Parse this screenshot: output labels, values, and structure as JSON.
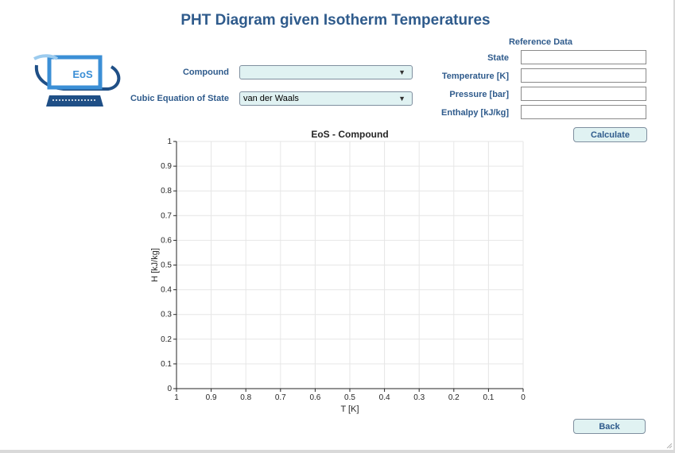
{
  "window": {
    "title": "PHT Diagram given Isotherm Temperatures"
  },
  "logo": {
    "text": "EoS"
  },
  "form": {
    "compound_label": "Compound",
    "compound_value": "",
    "eos_label": "Cubic Equation of State",
    "eos_value": "van der Waals"
  },
  "reference": {
    "heading": "Reference Data",
    "state_label": "State",
    "temperature_label": "Temperature [K]",
    "pressure_label": "Pressure [bar]",
    "enthalpy_label": "Enthalpy [kJ/kg]",
    "state_value": "",
    "temperature_value": "",
    "pressure_value": "",
    "enthalpy_value": ""
  },
  "buttons": {
    "calculate": "Calculate",
    "back": "Back"
  },
  "icons": {
    "dropdown_arrow": "▼"
  },
  "colors": {
    "accent": "#2f5b8c",
    "control_fill": "#e0f2f2",
    "logo_blue": "#3b8fd6"
  },
  "chart_data": {
    "type": "line",
    "title": "EoS - Compound",
    "xlabel": "T [K]",
    "ylabel": "H [kJ/kg]",
    "xlim": [
      1,
      0
    ],
    "ylim": [
      0,
      1
    ],
    "x_reversed": true,
    "xticks": [
      "1",
      "0.9",
      "0.8",
      "0.7",
      "0.6",
      "0.5",
      "0.4",
      "0.3",
      "0.2",
      "0.1",
      "0"
    ],
    "yticks": [
      "0",
      "0.1",
      "0.2",
      "0.3",
      "0.4",
      "0.5",
      "0.6",
      "0.7",
      "0.8",
      "0.9",
      "1"
    ],
    "grid": true,
    "series": []
  }
}
